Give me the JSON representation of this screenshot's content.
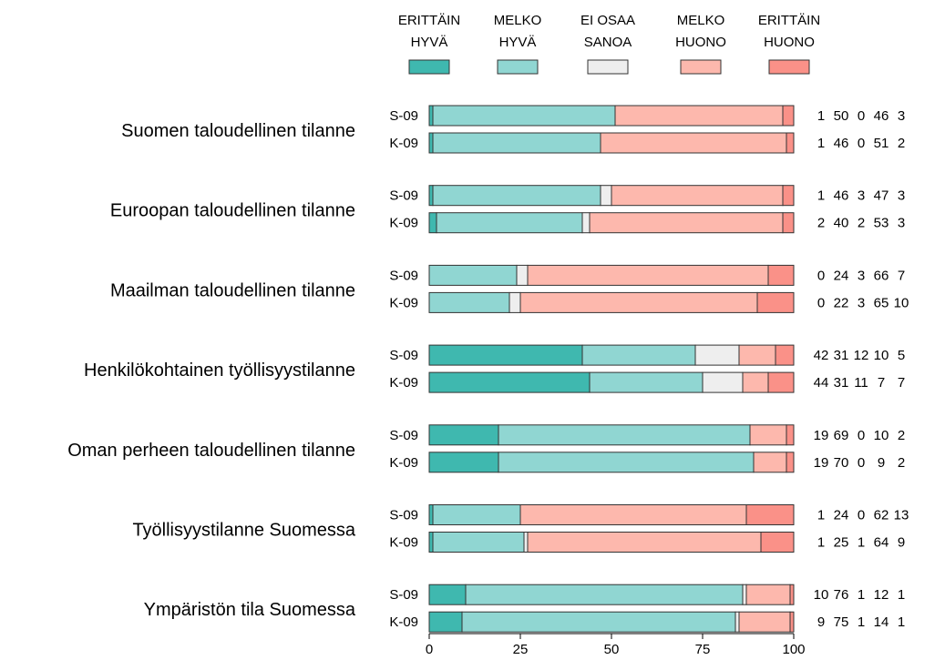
{
  "chart_data": {
    "type": "bar",
    "orientation": "horizontal",
    "stacked": true,
    "legend": [
      {
        "line1": "ERITTÄIN",
        "line2": "HYVÄ",
        "color": "#3fb8af"
      },
      {
        "line1": "MELKO",
        "line2": "HYVÄ",
        "color": "#90d6d2"
      },
      {
        "line1": "EI OSAA",
        "line2": "SANOA",
        "color": "#eeeeee"
      },
      {
        "line1": "MELKO",
        "line2": "HUONO",
        "color": "#fdb8ad"
      },
      {
        "line1": "ERITTÄIN",
        "line2": "HUONO",
        "color": "#fa9188"
      }
    ],
    "legend_position": "top",
    "xlim": [
      0,
      100
    ],
    "x_ticks": [
      "0",
      "25",
      "50",
      "75",
      "100"
    ],
    "groups": [
      {
        "label": "Suomen taloudellinen tilanne",
        "rows": [
          {
            "period": "S-09",
            "values": [
              1,
              50,
              0,
              46,
              3
            ]
          },
          {
            "period": "K-09",
            "values": [
              1,
              46,
              0,
              51,
              2
            ]
          }
        ]
      },
      {
        "label": "Euroopan taloudellinen tilanne",
        "rows": [
          {
            "period": "S-09",
            "values": [
              1,
              46,
              3,
              47,
              3
            ]
          },
          {
            "period": "K-09",
            "values": [
              2,
              40,
              2,
              53,
              3
            ]
          }
        ]
      },
      {
        "label": "Maailman taloudellinen tilanne",
        "rows": [
          {
            "period": "S-09",
            "values": [
              0,
              24,
              3,
              66,
              7
            ]
          },
          {
            "period": "K-09",
            "values": [
              0,
              22,
              3,
              65,
              10
            ]
          }
        ]
      },
      {
        "label": "Henkilökohtainen työllisyystilanne",
        "rows": [
          {
            "period": "S-09",
            "values": [
              42,
              31,
              12,
              10,
              5
            ]
          },
          {
            "period": "K-09",
            "values": [
              44,
              31,
              11,
              7,
              7
            ]
          }
        ]
      },
      {
        "label": "Oman perheen taloudellinen tilanne",
        "rows": [
          {
            "period": "S-09",
            "values": [
              19,
              69,
              0,
              10,
              2
            ]
          },
          {
            "period": "K-09",
            "values": [
              19,
              70,
              0,
              9,
              2
            ]
          }
        ]
      },
      {
        "label": "Työllisyystilanne Suomessa",
        "rows": [
          {
            "period": "S-09",
            "values": [
              1,
              24,
              0,
              62,
              13
            ]
          },
          {
            "period": "K-09",
            "values": [
              1,
              25,
              1,
              64,
              9
            ]
          }
        ]
      },
      {
        "label": "Ympäristön tila Suomessa",
        "rows": [
          {
            "period": "S-09",
            "values": [
              10,
              76,
              1,
              12,
              1
            ]
          },
          {
            "period": "K-09",
            "values": [
              9,
              75,
              1,
              14,
              1
            ]
          }
        ]
      }
    ]
  }
}
